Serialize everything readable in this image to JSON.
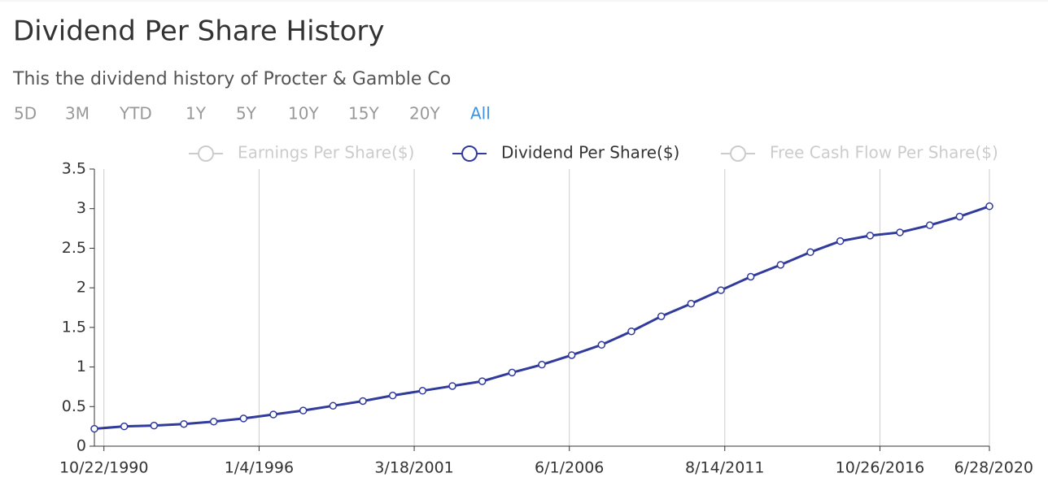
{
  "header": {
    "title": "Dividend Per Share History",
    "subtitle": "This the dividend history of Procter & Gamble Co",
    "ranges": [
      "5D",
      "3M",
      "YTD",
      "1Y",
      "5Y",
      "10Y",
      "15Y",
      "20Y",
      "All"
    ],
    "selected_range": "All"
  },
  "chart_data": {
    "type": "line",
    "x": [
      1990.49,
      1991.49,
      1992.49,
      1993.49,
      1994.49,
      1995.49,
      1996.49,
      1997.49,
      1998.49,
      1999.49,
      2000.49,
      2001.49,
      2002.49,
      2003.49,
      2004.49,
      2005.49,
      2006.49,
      2007.49,
      2008.49,
      2009.49,
      2010.49,
      2011.49,
      2012.49,
      2013.49,
      2014.49,
      2015.49,
      2016.49,
      2017.49,
      2018.49,
      2019.49,
      2020.49
    ],
    "series": [
      {
        "name": "Earnings Per Share($)",
        "visible": false
      },
      {
        "name": "Dividend Per Share($)",
        "visible": true,
        "color": "#313b9c",
        "values": [
          0.22,
          0.25,
          0.26,
          0.28,
          0.31,
          0.35,
          0.4,
          0.45,
          0.51,
          0.57,
          0.64,
          0.7,
          0.76,
          0.82,
          0.93,
          1.03,
          1.15,
          1.28,
          1.45,
          1.64,
          1.8,
          1.97,
          2.14,
          2.29,
          2.45,
          2.59,
          2.66,
          2.7,
          2.79,
          2.9,
          3.03
        ]
      },
      {
        "name": "Free Cash Flow Per Share($)",
        "visible": false
      }
    ],
    "xlim": [
      1990.49,
      2020.49
    ],
    "xticks": [
      {
        "value": 1990.81,
        "label": "10/22/1990"
      },
      {
        "value": 1996.01,
        "label": "1/4/1996"
      },
      {
        "value": 2001.21,
        "label": "3/18/2001"
      },
      {
        "value": 2006.41,
        "label": "6/1/2006"
      },
      {
        "value": 2011.62,
        "label": "8/14/2011"
      },
      {
        "value": 2016.82,
        "label": "10/26/2016"
      },
      {
        "value": 2020.49,
        "label": "6/28/2020"
      }
    ],
    "ylim": [
      0,
      3.5
    ],
    "yticks": [
      0,
      0.5,
      1,
      1.5,
      2,
      2.5,
      3,
      3.5
    ],
    "grid": "x"
  }
}
